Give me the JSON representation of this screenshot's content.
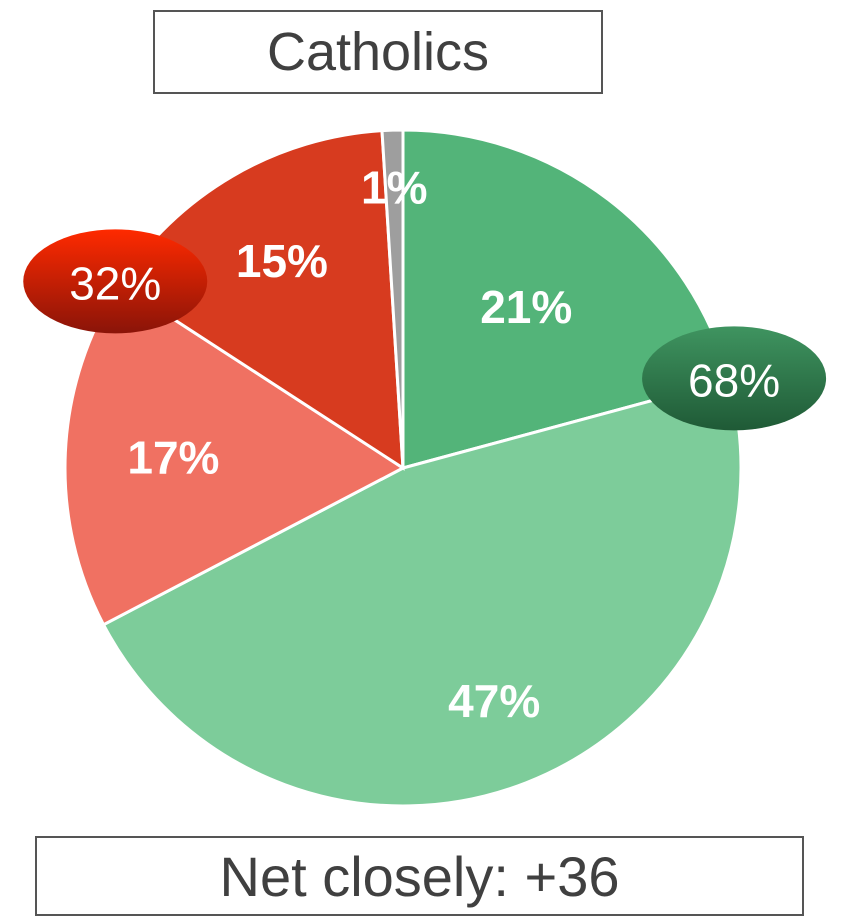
{
  "chart_data": {
    "type": "pie",
    "title": "Catholics",
    "slices": [
      {
        "label": "21%",
        "value": 21,
        "color": "#53b479"
      },
      {
        "label": "47%",
        "value": 47,
        "color": "#7dcc9a"
      },
      {
        "label": "17%",
        "value": 17,
        "color": "#f07162"
      },
      {
        "label": "15%",
        "value": 15,
        "color": "#d73b1f"
      },
      {
        "label": "1%",
        "value": 1,
        "color": "#9e9e9e"
      }
    ],
    "groups": [
      {
        "label": "68%",
        "value": 68,
        "color": "#2e7a4c",
        "slices": [
          0,
          1
        ]
      },
      {
        "label": "32%",
        "value": 32,
        "color": "#c1200a",
        "slices": [
          2,
          3
        ]
      }
    ],
    "footer": "Net closely: +36"
  }
}
